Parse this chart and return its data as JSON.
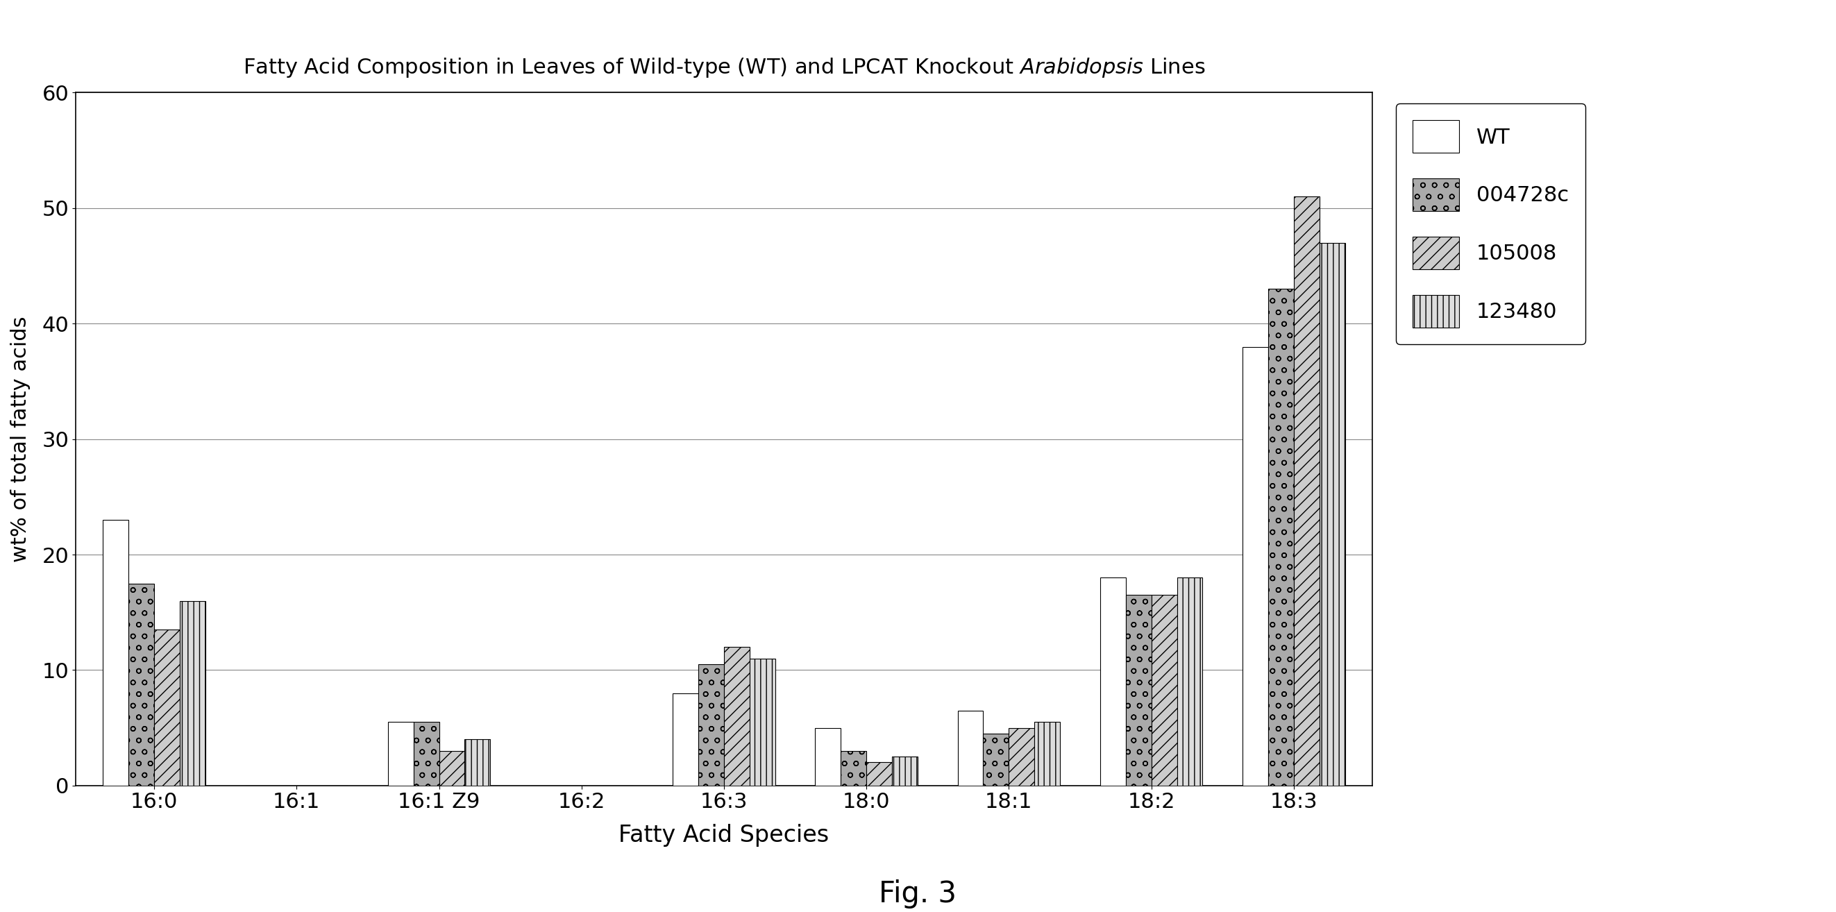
{
  "title_text": "Fatty Acid Composition in Leaves of Wild-type (WT) and LPCAT Knockout $\\it{Arabidopsis}$ Lines",
  "xlabel": "Fatty Acid Species",
  "ylabel": "wt% of total fatty acids",
  "categories": [
    "16:0",
    "16:1",
    "16:1 Z9",
    "16:2",
    "16:3",
    "18:0",
    "18:1",
    "18:2",
    "18:3"
  ],
  "series_labels": [
    "WT",
    "004728c",
    "105008",
    "123480"
  ],
  "values": {
    "WT": [
      23.0,
      0.0,
      5.5,
      0.0,
      8.0,
      5.0,
      6.5,
      18.0,
      38.0
    ],
    "004728c": [
      17.5,
      0.0,
      5.5,
      0.0,
      10.5,
      3.0,
      4.5,
      16.5,
      43.0
    ],
    "105008": [
      13.5,
      0.0,
      3.0,
      0.0,
      12.0,
      2.0,
      5.0,
      16.5,
      51.0
    ],
    "123480": [
      16.0,
      0.0,
      4.0,
      0.0,
      11.0,
      2.5,
      5.5,
      18.0,
      47.0
    ]
  },
  "ylim": [
    0,
    60
  ],
  "yticks": [
    0,
    10,
    20,
    30,
    40,
    50,
    60
  ],
  "fig_caption": "Fig. 3",
  "background_color": "#ffffff",
  "bar_edge_color": "#000000",
  "bar_width": 0.18,
  "hatches": [
    "",
    "o",
    "//",
    "||"
  ],
  "bar_facecolors": [
    "#ffffff",
    "#aaaaaa",
    "#cccccc",
    "#dddddd"
  ],
  "hatch_colors": [
    "#000000",
    "#000000",
    "#000000",
    "#000000"
  ]
}
